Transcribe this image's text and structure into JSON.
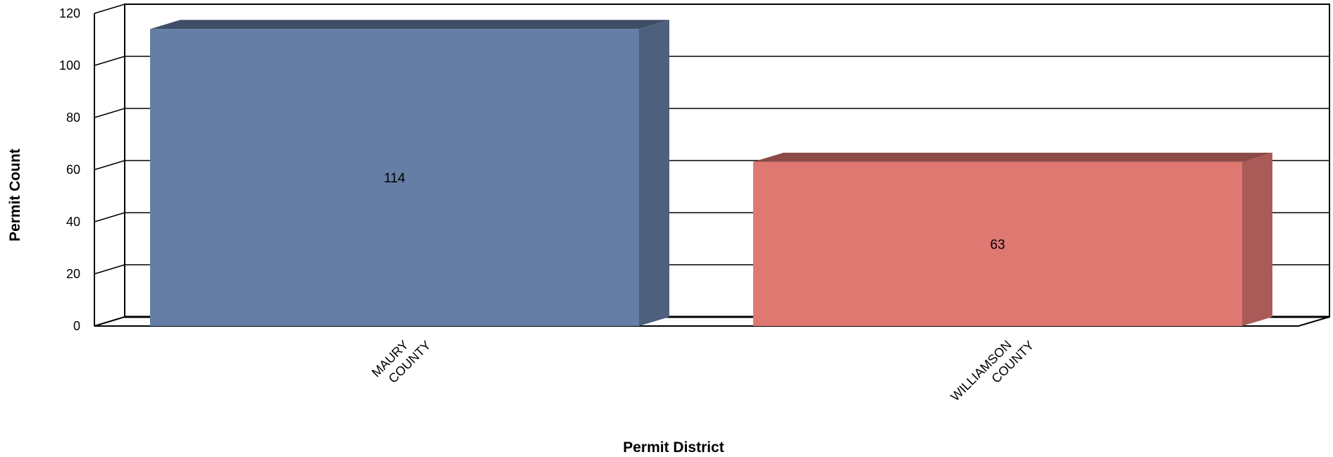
{
  "chart_data": {
    "type": "bar",
    "style": "3d-clustered-column",
    "categories": [
      "MAURY COUNTY",
      "WILLIAMSON COUNTY"
    ],
    "category_lines": [
      [
        "MAURY",
        "COUNTY"
      ],
      [
        "WILLIAMSON",
        "COUNTY"
      ]
    ],
    "values": [
      114,
      63
    ],
    "data_labels": [
      "114",
      "63"
    ],
    "colors": [
      "#657ea5",
      "#e07872"
    ],
    "xlabel": "Permit District",
    "ylabel": "Permit Count",
    "ylim": [
      0,
      120
    ],
    "yticks": [
      0,
      20,
      40,
      60,
      80,
      100,
      120
    ],
    "grid": true,
    "legend": "none"
  }
}
